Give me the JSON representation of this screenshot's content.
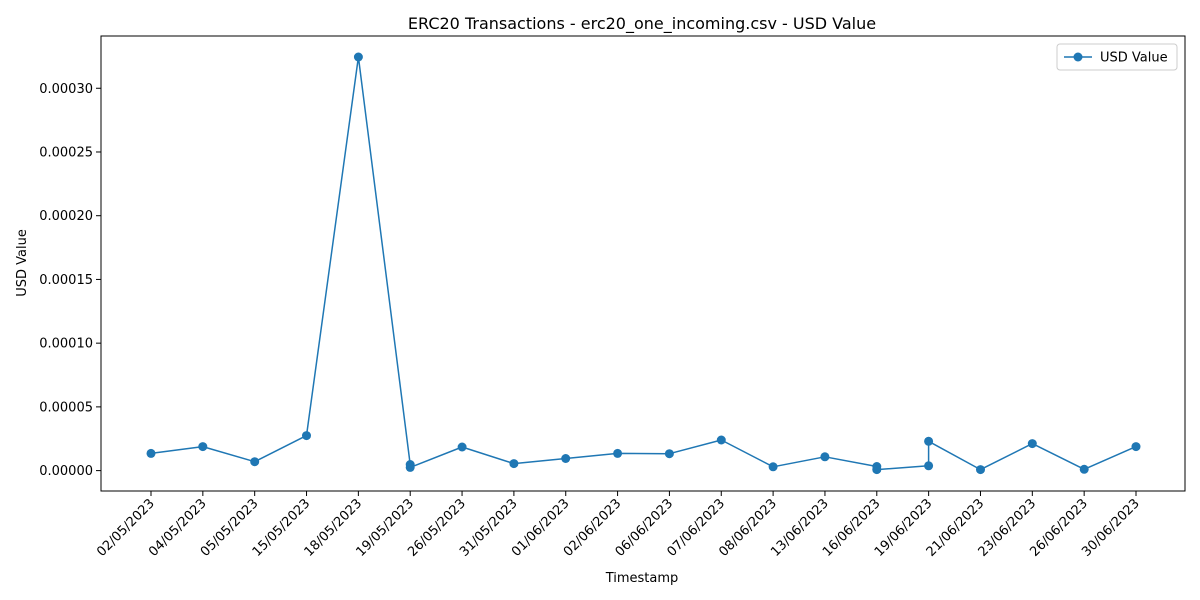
{
  "chart_data": {
    "type": "line",
    "title": "ERC20 Transactions - erc20_one_incoming.csv - USD Value",
    "xlabel": "Timestamp",
    "ylabel": "USD Value",
    "categories": [
      "02/05/2023",
      "04/05/2023",
      "05/05/2023",
      "15/05/2023",
      "18/05/2023",
      "19/05/2023",
      "26/05/2023",
      "31/05/2023",
      "01/06/2023",
      "02/06/2023",
      "06/06/2023",
      "07/06/2023",
      "08/06/2023",
      "13/06/2023",
      "16/06/2023",
      "19/06/2023",
      "21/06/2023",
      "23/06/2023",
      "26/06/2023",
      "30/06/2023"
    ],
    "yticks": [
      "0.00000",
      "0.00005",
      "0.00010",
      "0.00015",
      "0.00020",
      "0.00025",
      "0.00030"
    ],
    "ylim": [
      -1.6e-05,
      0.000341
    ],
    "grid": false,
    "legend_position": "top-right",
    "series": [
      {
        "name": "USD Value",
        "color": "#1f77b4",
        "marker": "circle",
        "points": [
          {
            "x": "02/05/2023",
            "y": 1.35e-05
          },
          {
            "x": "04/05/2023",
            "y": 1.88e-05
          },
          {
            "x": "05/05/2023",
            "y": 7e-06
          },
          {
            "x": "15/05/2023",
            "y": 2.75e-05
          },
          {
            "x": "18/05/2023",
            "y": 0.0003245
          },
          {
            "x": "19/05/2023",
            "y": 4.8e-06
          },
          {
            "x": "19/05/2023",
            "y": 2.5e-06
          },
          {
            "x": "26/05/2023",
            "y": 1.85e-05
          },
          {
            "x": "31/05/2023",
            "y": 5.5e-06
          },
          {
            "x": "01/06/2023",
            "y": 9.5e-06
          },
          {
            "x": "02/06/2023",
            "y": 1.35e-05
          },
          {
            "x": "06/06/2023",
            "y": 1.33e-05
          },
          {
            "x": "07/06/2023",
            "y": 2.4e-05
          },
          {
            "x": "08/06/2023",
            "y": 3e-06
          },
          {
            "x": "13/06/2023",
            "y": 1.08e-05
          },
          {
            "x": "16/06/2023",
            "y": 3.2e-06
          },
          {
            "x": "16/06/2023",
            "y": 8e-07
          },
          {
            "x": "19/06/2023",
            "y": 3.8e-06
          },
          {
            "x": "19/06/2023",
            "y": 2.3e-05
          },
          {
            "x": "21/06/2023",
            "y": 8e-07
          },
          {
            "x": "23/06/2023",
            "y": 2.12e-05
          },
          {
            "x": "26/06/2023",
            "y": 1e-06
          },
          {
            "x": "30/06/2023",
            "y": 1.88e-05
          }
        ]
      }
    ]
  }
}
